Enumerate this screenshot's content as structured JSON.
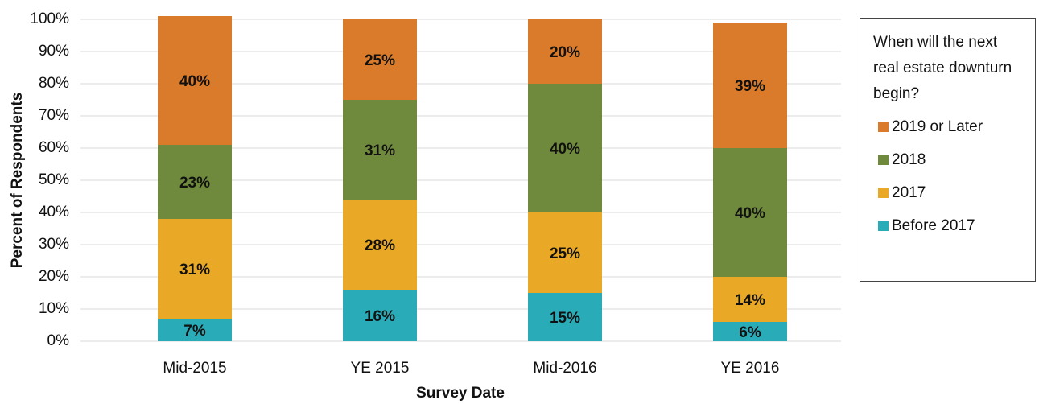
{
  "chart_data": {
    "type": "stacked_bar",
    "categories": [
      "Mid-2015",
      "YE 2015",
      "Mid-2016",
      "YE 2016"
    ],
    "series": [
      {
        "name": "Before 2017",
        "color": "#2aabb8",
        "values": [
          7,
          16,
          15,
          6
        ],
        "value_labels": [
          "7%",
          "16%",
          "15%",
          "6%"
        ]
      },
      {
        "name": "2017",
        "color": "#e9a825",
        "values": [
          31,
          28,
          25,
          14
        ],
        "value_labels": [
          "31%",
          "28%",
          "25%",
          "14%"
        ]
      },
      {
        "name": "2018",
        "color": "#6f8a3c",
        "values": [
          23,
          31,
          40,
          40
        ],
        "value_labels": [
          "23%",
          "31%",
          "40%",
          "40%"
        ]
      },
      {
        "name": "2019 or Later",
        "color": "#d97b2b",
        "values": [
          40,
          25,
          20,
          39
        ],
        "value_labels": [
          "40%",
          "25%",
          "20%",
          "39%"
        ]
      }
    ],
    "ylabel": "Percent of Respondents",
    "xlabel": "Survey Date",
    "legend_title": "When will the next real estate downturn begin?",
    "ylim": [
      0,
      100
    ],
    "yticks": [
      {
        "value": 0,
        "label": "0%"
      },
      {
        "value": 10,
        "label": "10%"
      },
      {
        "value": 20,
        "label": "20%"
      },
      {
        "value": 30,
        "label": "30%"
      },
      {
        "value": 40,
        "label": "40%"
      },
      {
        "value": 50,
        "label": "50%"
      },
      {
        "value": 60,
        "label": "60%"
      },
      {
        "value": 70,
        "label": "70%"
      },
      {
        "value": 80,
        "label": "80%"
      },
      {
        "value": 90,
        "label": "90%"
      },
      {
        "value": 100,
        "label": "100%"
      }
    ],
    "grid": true,
    "legend": "right"
  }
}
